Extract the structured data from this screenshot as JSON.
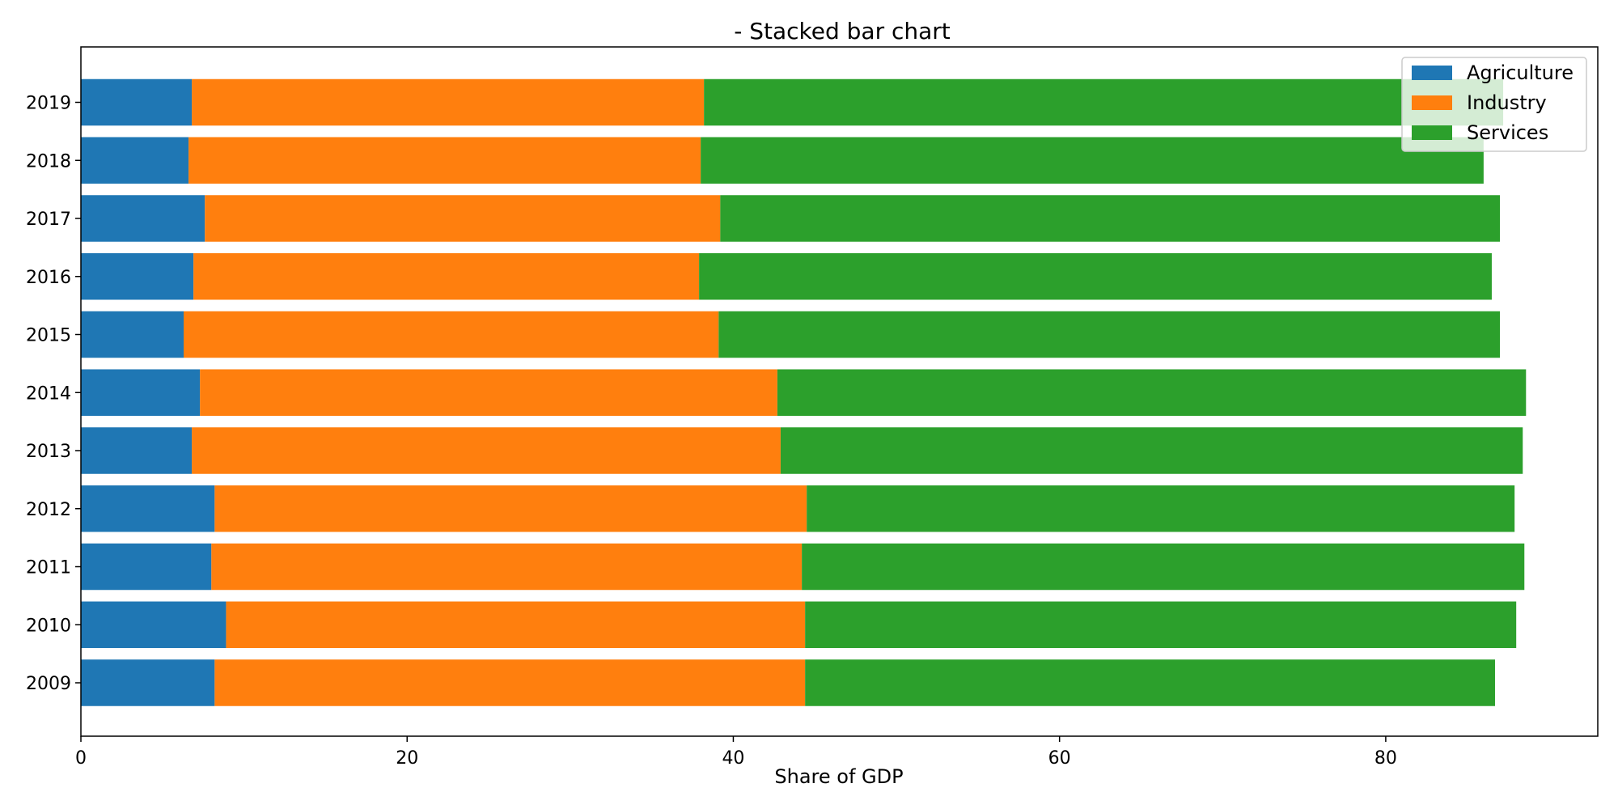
{
  "chart_data": {
    "type": "bar",
    "orientation": "horizontal",
    "stacked": true,
    "title": "- Stacked bar chart",
    "xlabel": "Share of GDP",
    "ylabel": "",
    "xlim": [
      0,
      93
    ],
    "xticks": [
      0,
      20,
      40,
      60,
      80
    ],
    "categories": [
      "2009",
      "2010",
      "2011",
      "2012",
      "2013",
      "2014",
      "2015",
      "2016",
      "2017",
      "2018",
      "2019"
    ],
    "series": [
      {
        "name": "Agriculture",
        "color": "#1f77b4",
        "values": [
          8.2,
          8.9,
          8.0,
          8.2,
          6.8,
          7.3,
          6.3,
          6.9,
          7.6,
          6.6,
          6.8
        ]
      },
      {
        "name": "Industry",
        "color": "#ff7f0e",
        "values": [
          36.2,
          35.5,
          36.2,
          36.3,
          36.1,
          35.4,
          32.8,
          31.0,
          31.6,
          31.4,
          31.4
        ]
      },
      {
        "name": "Services",
        "color": "#2ca02c",
        "values": [
          42.3,
          43.6,
          44.3,
          43.4,
          45.5,
          45.9,
          47.9,
          48.6,
          47.8,
          48.0,
          49.0
        ]
      }
    ],
    "grid": false,
    "legend_position": "top-right"
  }
}
